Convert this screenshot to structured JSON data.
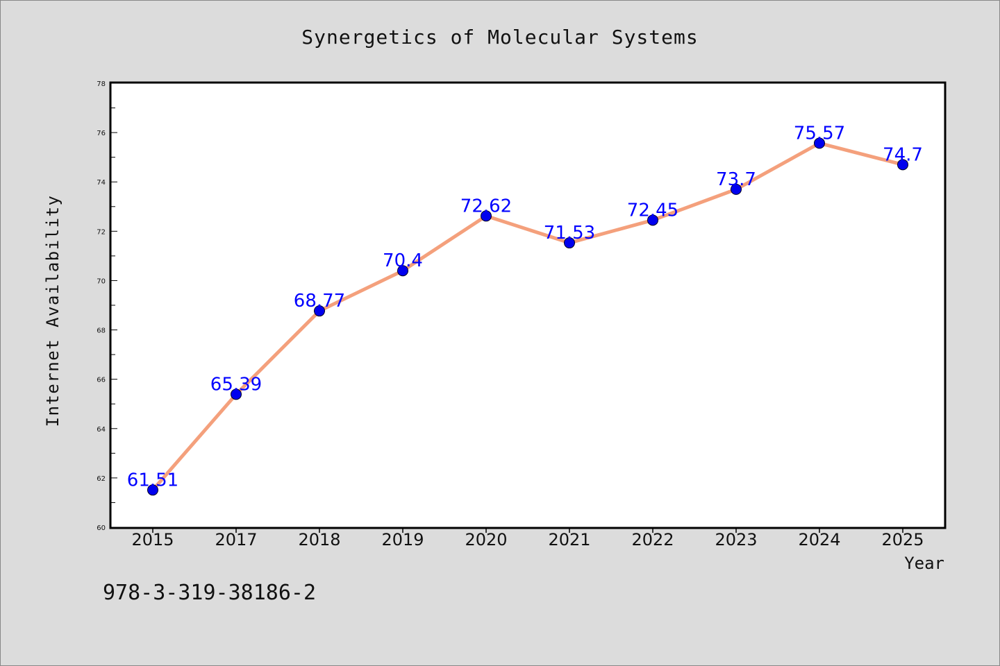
{
  "chart_data": {
    "type": "line",
    "title": "Synergetics of Molecular Systems",
    "xlabel": "Year",
    "ylabel": "Internet Availability",
    "categories": [
      "2015",
      "2017",
      "2018",
      "2019",
      "2020",
      "2021",
      "2022",
      "2023",
      "2024",
      "2025"
    ],
    "series": [
      {
        "values": [
          61.51,
          65.39,
          68.77,
          70.4,
          72.62,
          71.53,
          72.45,
          73.7,
          75.57,
          74.7
        ]
      }
    ],
    "data_labels": [
      "61.51",
      "65.39",
      "68.77",
      "70.4",
      "72.62",
      "71.53",
      "72.45",
      "73.7",
      "75.57",
      "74.7"
    ],
    "ylim": [
      60,
      78
    ],
    "yticks": [
      60,
      62,
      64,
      66,
      68,
      70,
      72,
      74,
      76,
      78
    ],
    "grid": false,
    "legend": "none",
    "colors": {
      "line": "#f4a07c",
      "marker": "#0000ee",
      "label": "#0000ff",
      "background": "#dcdcdc",
      "plot_area": "#ffffff"
    }
  },
  "footnote": "978-3-319-38186-2"
}
